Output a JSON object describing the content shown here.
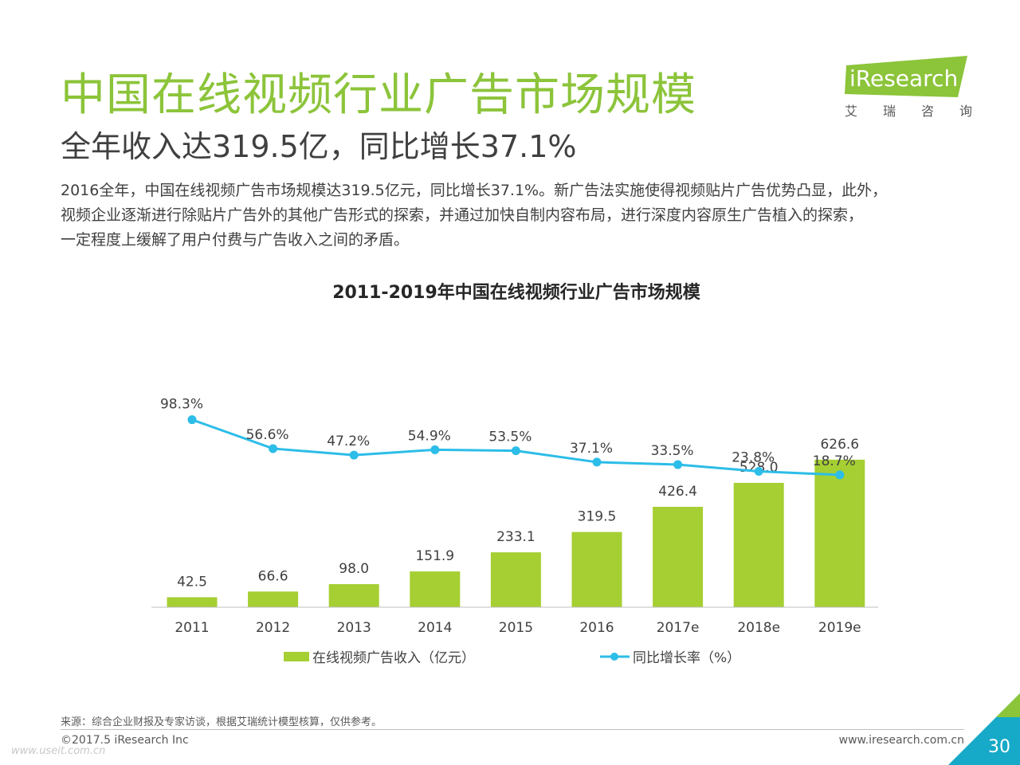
{
  "slide": {
    "title": "中国在线视频行业广告市场规模",
    "subtitle": "全年收入达319.5亿，同比增长37.1%",
    "intro_lines": [
      "2016全年，中国在线视频广告市场规模达319.5亿元，同比增长37.1%。新广告法实施使得视频贴片广告优势凸显，此外，",
      "视频企业逐渐进行除贴片广告外的其他广告形式的探索，并通过加快自制内容布局，进行深度内容原生广告植入的探索，",
      "一定程度上缓解了用户付费与广告收入之间的矛盾。"
    ],
    "source": "来源：综合企业财报及专家访谈，根据艾瑞统计模型核算，仅供参考。",
    "copyright": "©2017.5 iResearch Inc",
    "website": "www.iresearch.com.cn",
    "page_number": "30",
    "watermark": "www.useit.com.cn"
  },
  "logo": {
    "brand": "iResearch",
    "cn_chars": [
      "艾",
      "瑞",
      "咨",
      "询"
    ]
  },
  "colors": {
    "accent_green": "#8cc43a",
    "bar_green": "#a5cf32",
    "line_blue": "#2cbde8",
    "text_dark": "#404040",
    "corner_teal": "#17a9c8",
    "corner_green": "#8cc43a"
  },
  "chart_data": {
    "type": "bar",
    "title": "2011-2019年中国在线视频行业广告市场规模",
    "categories": [
      "2011",
      "2012",
      "2013",
      "2014",
      "2015",
      "2016",
      "2017e",
      "2018e",
      "2019e"
    ],
    "series": [
      {
        "name": "在线视频广告收入（亿元）",
        "type": "bar",
        "values": [
          42.5,
          66.6,
          98.0,
          151.9,
          233.1,
          319.5,
          426.4,
          528.0,
          626.6
        ],
        "labels": [
          "42.5",
          "66.6",
          "98.0",
          "151.9",
          "233.1",
          "319.5",
          "426.4",
          "528.0",
          "626.6"
        ]
      },
      {
        "name": "同比增长率（%）",
        "type": "line",
        "values": [
          98.3,
          56.6,
          47.2,
          54.9,
          53.5,
          37.1,
          33.5,
          23.8,
          18.7
        ],
        "labels": [
          "98.3%",
          "56.6%",
          "47.2%",
          "54.9%",
          "53.5%",
          "37.1%",
          "33.5%",
          "23.8%",
          "18.7%"
        ]
      }
    ],
    "legend_position": "bottom",
    "grid": false
  }
}
